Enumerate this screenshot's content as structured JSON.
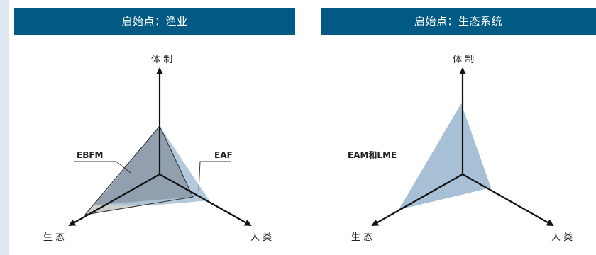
{
  "panels": [
    {
      "title": "启始点：渔业",
      "axes": {
        "top": "体 制",
        "left": "生 态",
        "right": "人 类"
      },
      "labels": {
        "ebfm": "EBFM",
        "eaf": "EAF"
      }
    },
    {
      "title": "启始点：生态系统",
      "axes": {
        "top": "体 制",
        "left": "生 态",
        "right": "人 类"
      },
      "labels": {
        "eam": "EAM和LME"
      }
    }
  ],
  "colors": {
    "header_bg": "#005a84",
    "area_blue": "#a7c0d6",
    "area_grey": "#cccccc",
    "area_overlap": "#8c9aa8",
    "axis": "#111111"
  }
}
